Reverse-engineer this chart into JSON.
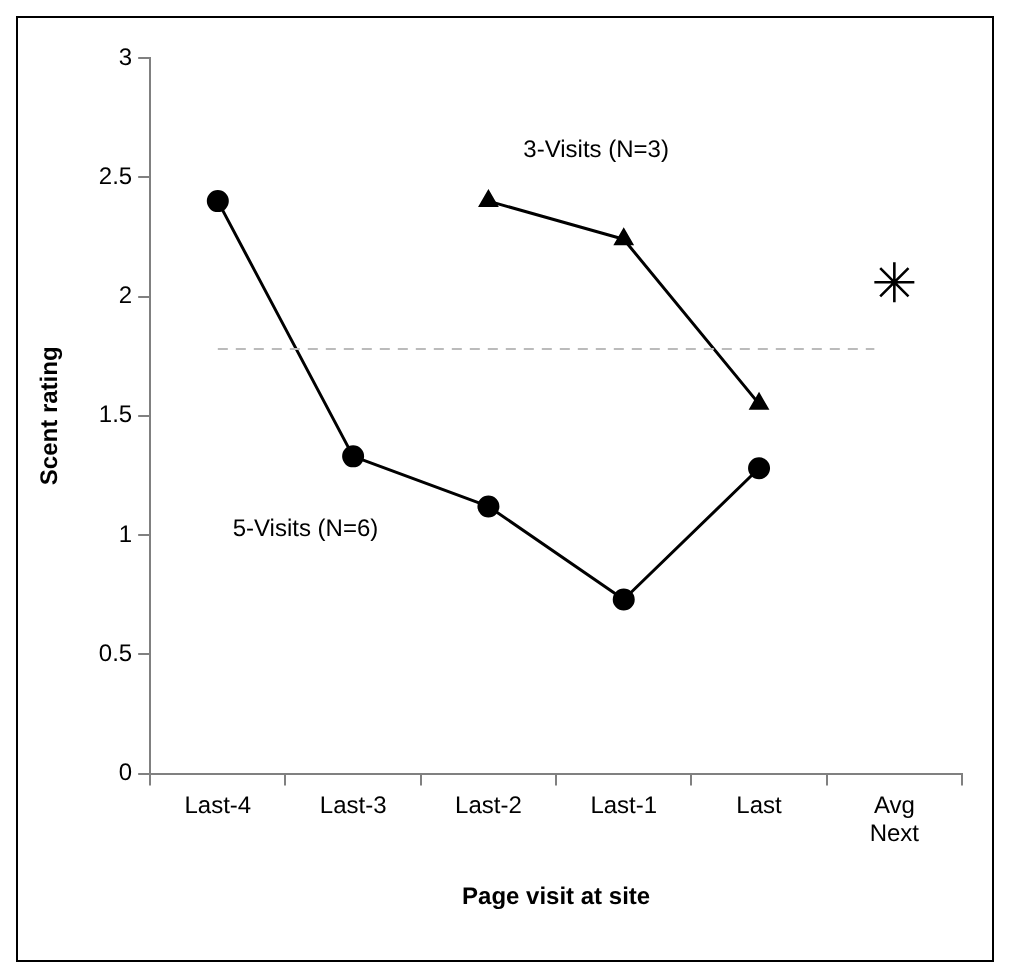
{
  "chart_data": {
    "type": "line",
    "xlabel": "Page visit at site",
    "ylabel": "Scent rating",
    "categories": [
      "Last-4",
      "Last-3",
      "Last-2",
      "Last-1",
      "Last",
      "Avg Next"
    ],
    "series": [
      {
        "name": "5-Visits (N=6)",
        "color": "#000000",
        "marker": "circle",
        "values": [
          2.4,
          1.33,
          1.12,
          0.73,
          1.28,
          null
        ]
      },
      {
        "name": "3-Visits (N=3)",
        "color": "#000000",
        "marker": "triangle",
        "values": [
          null,
          null,
          2.4,
          2.24,
          1.55,
          null
        ]
      },
      {
        "type": "scatter",
        "color": "#000000",
        "marker": "cross",
        "x": [
          "Avg Next"
        ],
        "values": [
          2.06
        ]
      }
    ],
    "ylim": [
      0,
      3
    ],
    "yticks": [
      0,
      0.5,
      1,
      1.5,
      2,
      2.5,
      3
    ],
    "ref_lines": [
      {
        "axis": "y",
        "value": 1.78,
        "color": "#bbbbbb",
        "line_style": "dashed"
      }
    ],
    "grid": false,
    "legend": false
  }
}
